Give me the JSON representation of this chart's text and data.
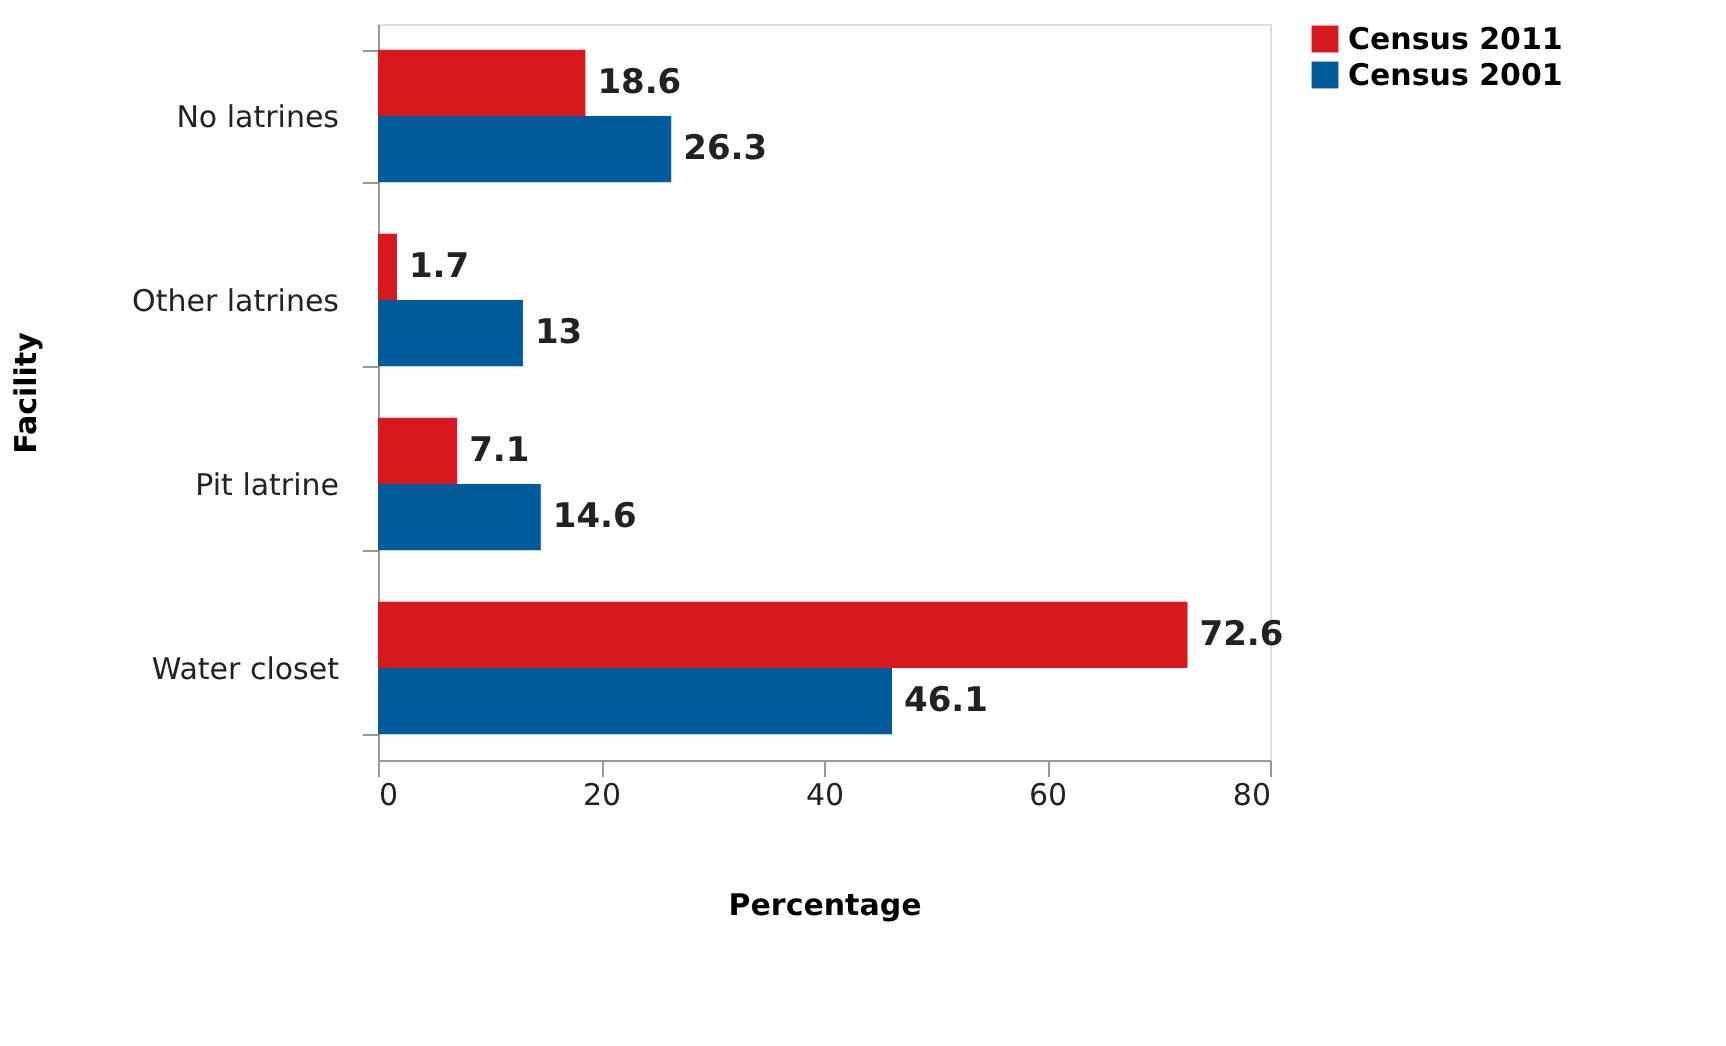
{
  "chart_data": {
    "type": "bar",
    "orientation": "horizontal",
    "xlabel": "Percentage",
    "ylabel": "Facility",
    "categories": [
      "No latrines",
      "Other latrines",
      "Pit latrine",
      "Water closet"
    ],
    "series": [
      {
        "name": "Census 2011",
        "color": "#d7181f",
        "values": [
          18.6,
          1.7,
          7.1,
          72.6
        ]
      },
      {
        "name": "Census 2001",
        "color": "#005b9a",
        "values": [
          26.3,
          13,
          14.6,
          46.1
        ]
      }
    ],
    "xlim": [
      0,
      80
    ],
    "xticks": [
      0,
      20,
      40,
      60,
      80
    ],
    "data_labels": true,
    "grid": false,
    "legend": "right"
  }
}
